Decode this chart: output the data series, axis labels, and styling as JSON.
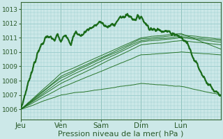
{
  "background_color": "#cce8e8",
  "plot_bg_color": "#cce8e8",
  "grid_color": "#99cccc",
  "line_color": "#1a6b1a",
  "xlabel": "Pression niveau de la mer( hPa )",
  "ylim": [
    1005.3,
    1013.5
  ],
  "yticks": [
    1006,
    1007,
    1008,
    1009,
    1010,
    1011,
    1012,
    1013
  ],
  "xtick_labels": [
    "Jeu",
    "Ven",
    "Sam",
    "Dim",
    "Lun"
  ],
  "xtick_positions": [
    0,
    24,
    48,
    72,
    96
  ],
  "vline_positions": [
    24,
    48,
    72,
    96
  ],
  "total_hours": 120,
  "xlabel_fontsize": 8,
  "ytick_fontsize": 6.5,
  "xtick_fontsize": 7.5
}
